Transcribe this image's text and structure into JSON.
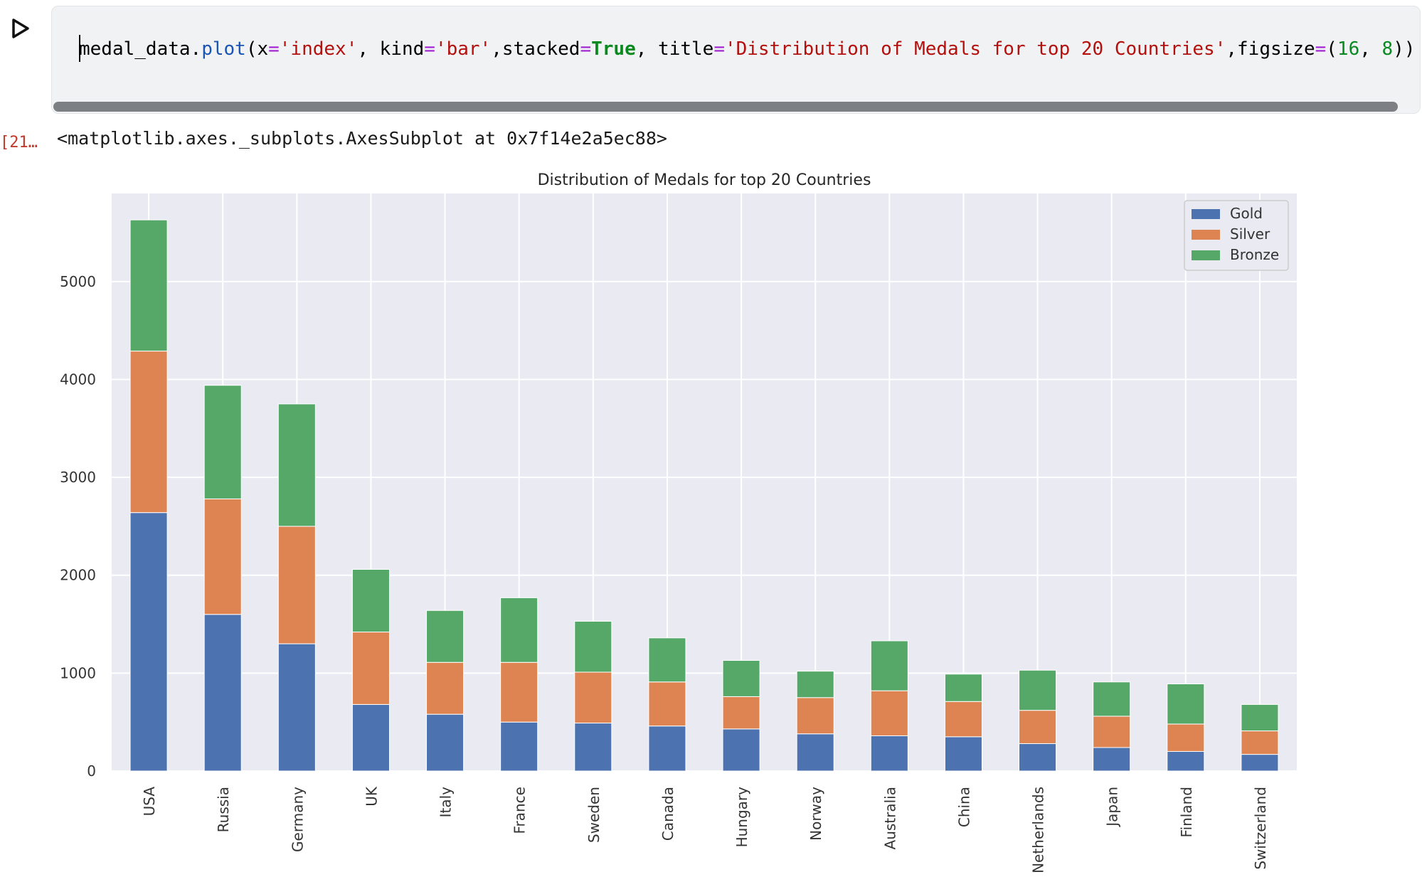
{
  "cell": {
    "code_tokens": [
      {
        "t": "medal_data.",
        "c": "plain"
      },
      {
        "t": "plot",
        "c": "fn"
      },
      {
        "t": "(x",
        "c": "plain"
      },
      {
        "t": "=",
        "c": "op"
      },
      {
        "t": "'index'",
        "c": "str"
      },
      {
        "t": ", kind",
        "c": "plain"
      },
      {
        "t": "=",
        "c": "op"
      },
      {
        "t": "'bar'",
        "c": "str"
      },
      {
        "t": ",stacked",
        "c": "plain"
      },
      {
        "t": "=",
        "c": "op"
      },
      {
        "t": "True",
        "c": "kw"
      },
      {
        "t": ", title",
        "c": "plain"
      },
      {
        "t": "=",
        "c": "op"
      },
      {
        "t": "'Distribution of Medals for top 20 Countries'",
        "c": "str"
      },
      {
        "t": ",figsize",
        "c": "plain"
      },
      {
        "t": "=",
        "c": "op"
      },
      {
        "t": "(",
        "c": "plain"
      },
      {
        "t": "16",
        "c": "num"
      },
      {
        "t": ", ",
        "c": "plain"
      },
      {
        "t": "8",
        "c": "num"
      },
      {
        "t": "))",
        "c": "plain"
      }
    ],
    "run_icon": "play-icon"
  },
  "output": {
    "exec_count": "[21…",
    "repr": "<matplotlib.axes._subplots.AxesSubplot at 0x7f14e2a5ec88>"
  },
  "chart_data": {
    "type": "bar",
    "stacked": true,
    "title": "Distribution of Medals for top 20 Countries",
    "xlabel": "",
    "ylabel": "",
    "ylim": [
      0,
      5900
    ],
    "yticks": [
      0,
      1000,
      2000,
      3000,
      4000,
      5000
    ],
    "grid": true,
    "legend_position": "top-right",
    "categories": [
      "USA",
      "Russia",
      "Germany",
      "UK",
      "Italy",
      "France",
      "Sweden",
      "Canada",
      "Hungary",
      "Norway",
      "Australia",
      "China",
      "Netherlands",
      "Japan",
      "Finland",
      "Switzerland"
    ],
    "series": [
      {
        "name": "Gold",
        "color": "#4c72b0",
        "values": [
          2640,
          1600,
          1300,
          680,
          580,
          500,
          490,
          460,
          430,
          380,
          360,
          350,
          280,
          240,
          200,
          170
        ]
      },
      {
        "name": "Silver",
        "color": "#dd8452",
        "values": [
          1650,
          1180,
          1200,
          740,
          530,
          610,
          520,
          450,
          330,
          370,
          460,
          360,
          340,
          320,
          280,
          240
        ]
      },
      {
        "name": "Bronze",
        "color": "#55a868",
        "values": [
          1340,
          1160,
          1250,
          640,
          530,
          660,
          520,
          450,
          370,
          270,
          510,
          280,
          410,
          350,
          410,
          270
        ]
      }
    ]
  }
}
